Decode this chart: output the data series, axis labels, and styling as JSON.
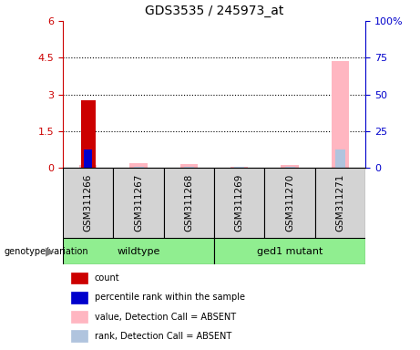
{
  "title": "GDS3535 / 245973_at",
  "samples": [
    "GSM311266",
    "GSM311267",
    "GSM311268",
    "GSM311269",
    "GSM311270",
    "GSM311271"
  ],
  "count_values": [
    2.75,
    0,
    0,
    0,
    0,
    0
  ],
  "percentile_values": [
    0.75,
    0,
    0,
    0,
    0,
    0
  ],
  "absent_value_values": [
    0.12,
    0.18,
    0.15,
    0.05,
    0.12,
    4.35
  ],
  "absent_rank_values": [
    0.05,
    0.05,
    0.05,
    0.05,
    0.05,
    0.75
  ],
  "ylim_left": [
    0,
    6
  ],
  "ylim_right": [
    0,
    100
  ],
  "yticks_left": [
    0,
    1.5,
    3.0,
    4.5,
    6.0
  ],
  "yticks_right": [
    0,
    25,
    50,
    75,
    100
  ],
  "ytick_labels_left": [
    "0",
    "1.5",
    "3",
    "4.5",
    "6"
  ],
  "ytick_labels_right": [
    "0",
    "25",
    "50",
    "75",
    "100%"
  ],
  "hlines": [
    1.5,
    3.0,
    4.5
  ],
  "color_count": "#CC0000",
  "color_percentile": "#0000CC",
  "color_absent_value": "#FFB6C1",
  "color_absent_rank": "#B0C4DE",
  "color_sample_box": "#D3D3D3",
  "color_group_box": "#90EE90",
  "legend_entries": [
    "count",
    "percentile rank within the sample",
    "value, Detection Call = ABSENT",
    "rank, Detection Call = ABSENT"
  ],
  "legend_colors": [
    "#CC0000",
    "#0000CC",
    "#FFB6C1",
    "#B0C4DE"
  ],
  "genotype_label": "genotype/variation",
  "group_wt_label": "wildtype",
  "group_mut_label": "ged1 mutant",
  "wt_samples": [
    0,
    1,
    2
  ],
  "mut_samples": [
    3,
    4,
    5
  ]
}
